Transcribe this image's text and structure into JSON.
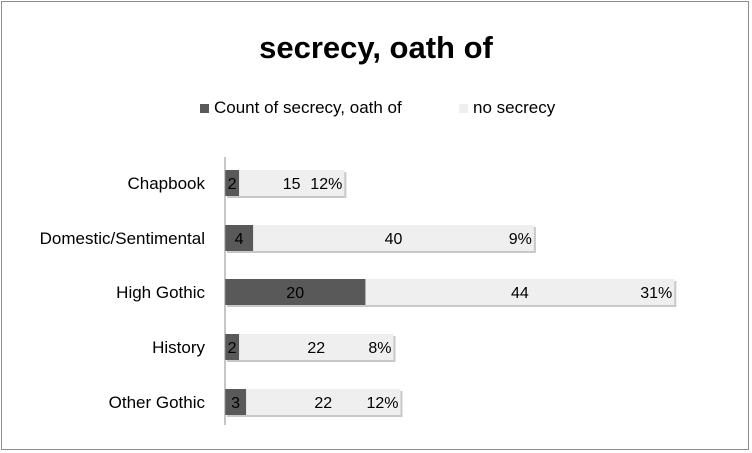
{
  "chart_data": {
    "type": "bar",
    "orientation": "horizontal",
    "stacked": true,
    "title": "secrecy, oath of",
    "categories": [
      "Chapbook",
      "Domestic/Sentimental",
      "High Gothic",
      "History",
      "Other Gothic"
    ],
    "series": [
      {
        "name": "Count of secrecy, oath of",
        "values": [
          2,
          4,
          20,
          2,
          3
        ],
        "color": "#595959"
      },
      {
        "name": "no secrecy",
        "values": [
          15,
          40,
          44,
          22,
          22
        ],
        "color": "#efefef"
      }
    ],
    "percent_labels": [
      "12%",
      "9%",
      "31%",
      "8%",
      "12%"
    ],
    "legend_position": "top",
    "grid": false
  }
}
